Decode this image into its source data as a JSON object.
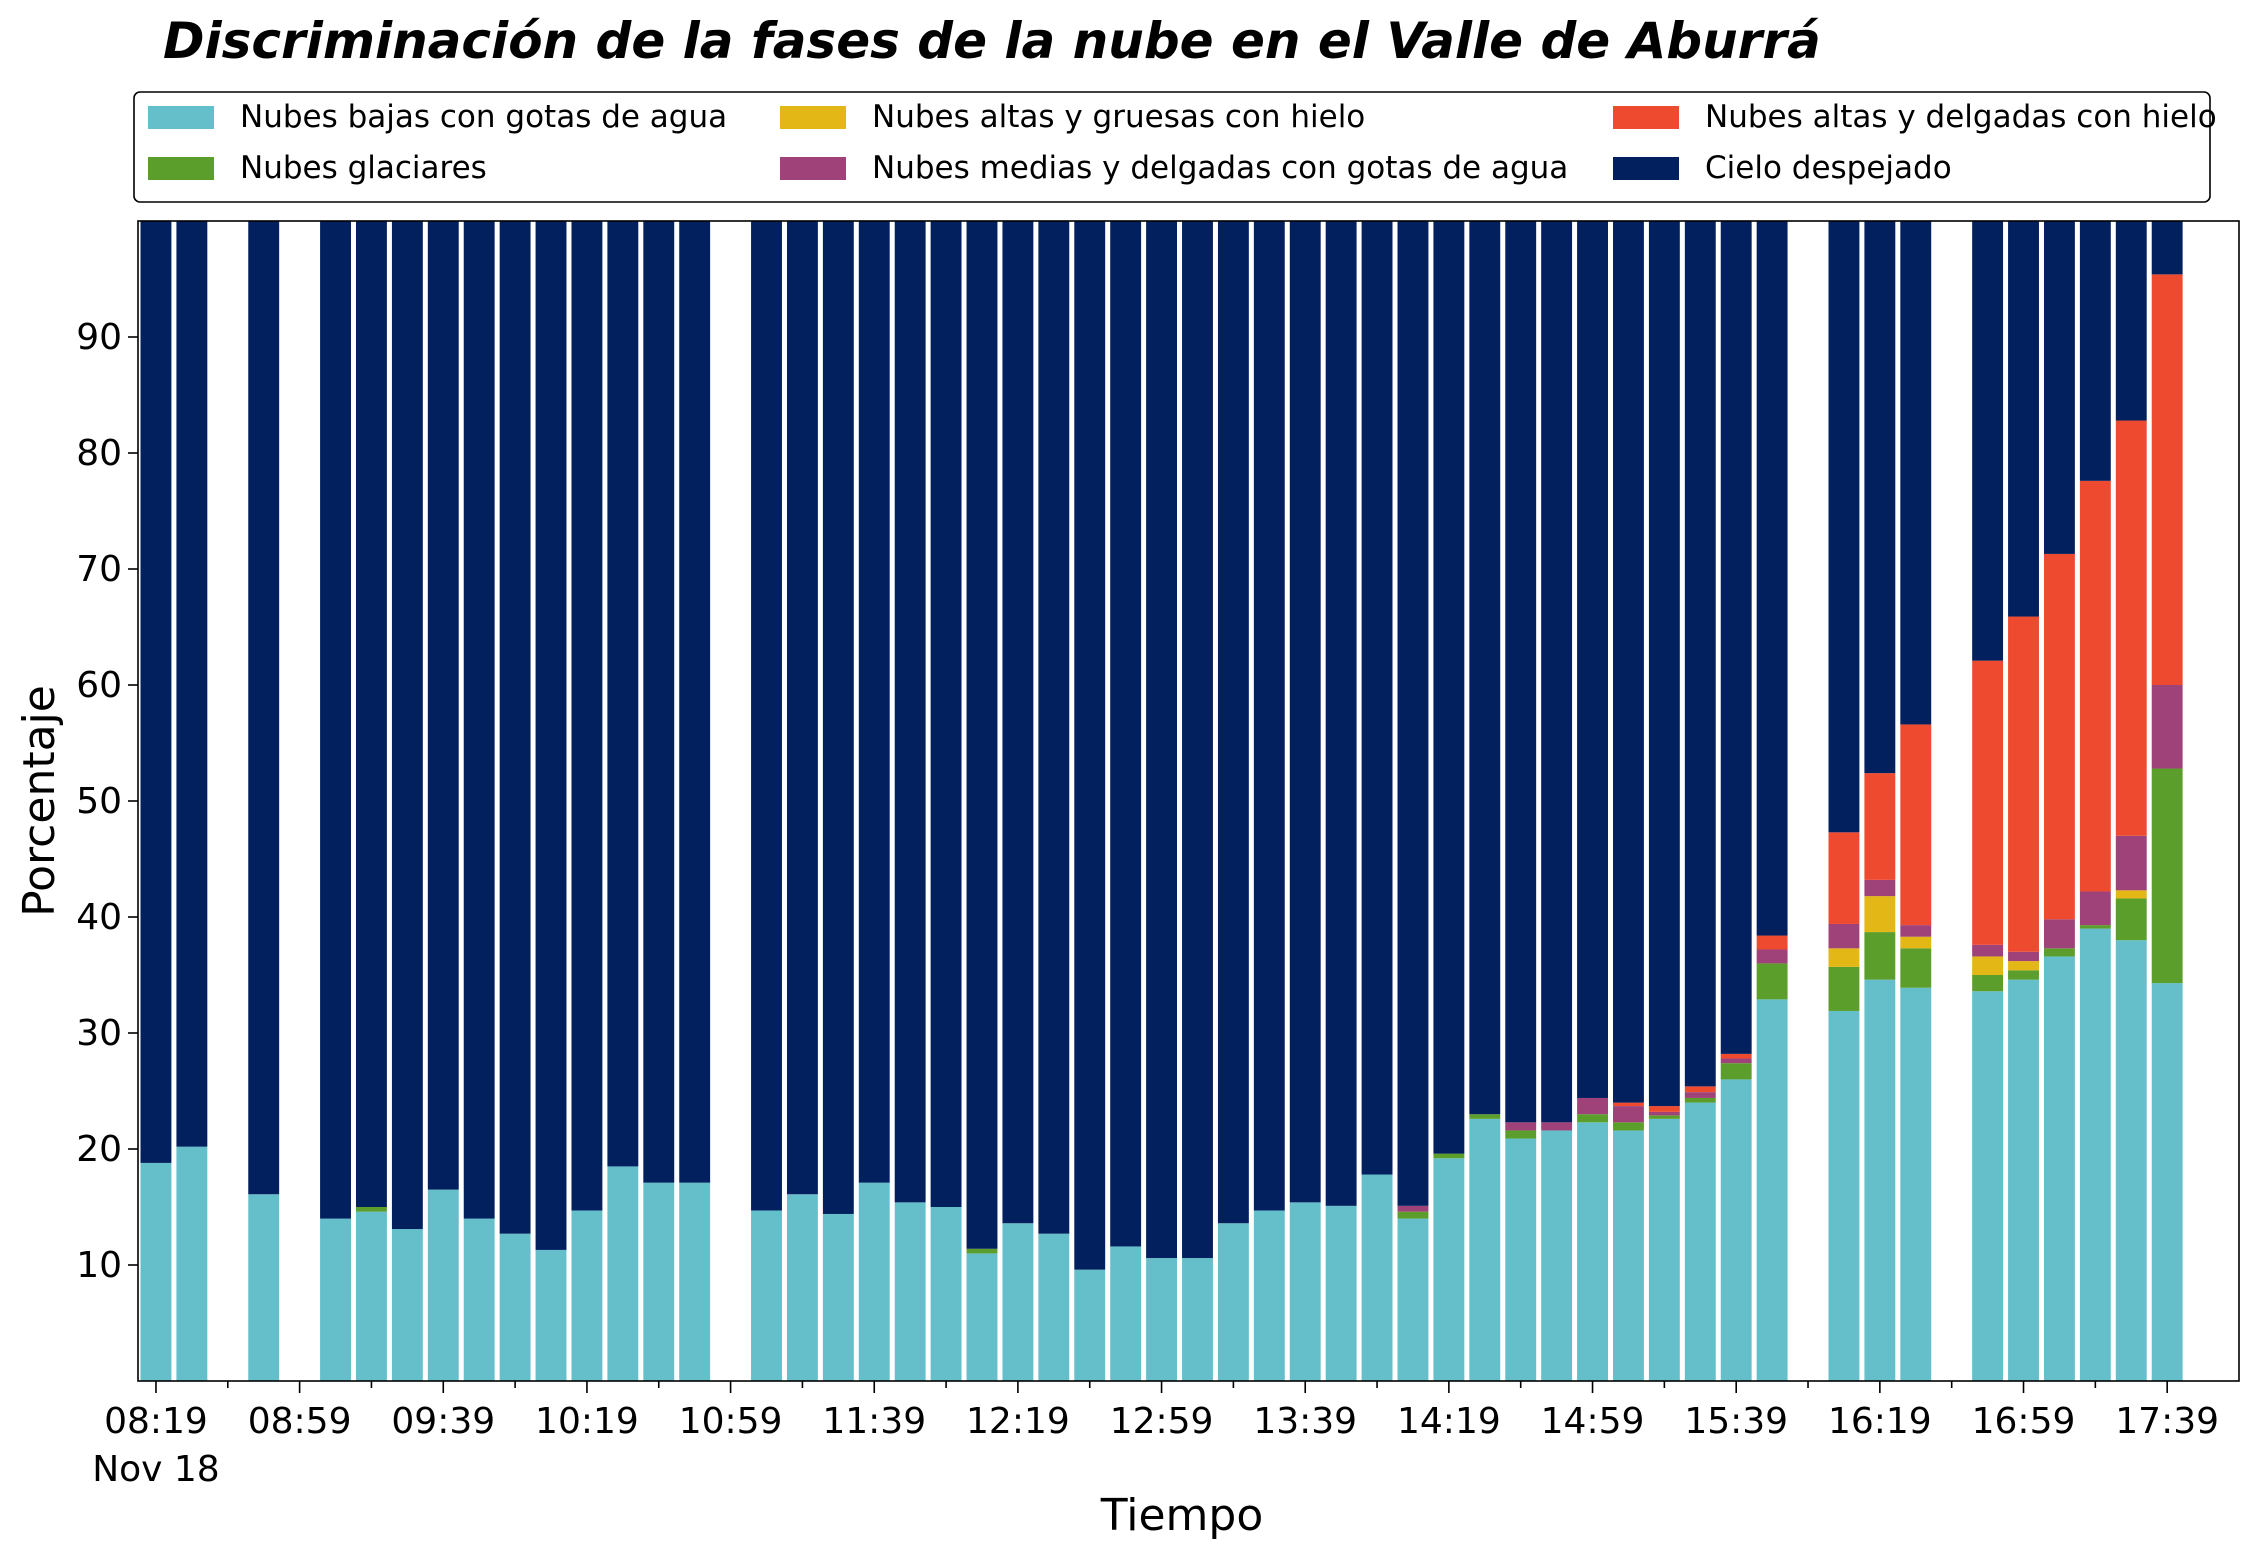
{
  "chart_data": {
    "type": "bar",
    "stacked": true,
    "title": "Discriminación de la fases de la nube en el Valle de Aburrá",
    "xlabel": "Tiempo",
    "ylabel": "Porcentaje",
    "ylim": [
      0,
      100
    ],
    "yticks": [
      10,
      20,
      30,
      40,
      50,
      60,
      70,
      80,
      90
    ],
    "grid": false,
    "legend_position": "top",
    "xtick_labels": [
      {
        "x": 0,
        "label": "08:19",
        "sublabel": "Nov 18"
      },
      {
        "x": 8,
        "label": "08:59"
      },
      {
        "x": 16,
        "label": "09:39"
      },
      {
        "x": 24,
        "label": "10:19"
      },
      {
        "x": 32,
        "label": "10:59"
      },
      {
        "x": 40,
        "label": "11:39"
      },
      {
        "x": 48,
        "label": "12:19"
      },
      {
        "x": 56,
        "label": "12:59"
      },
      {
        "x": 64,
        "label": "13:39"
      },
      {
        "x": 72,
        "label": "14:19"
      },
      {
        "x": 80,
        "label": "14:59"
      },
      {
        "x": 88,
        "label": "15:39"
      },
      {
        "x": 96,
        "label": "16:19"
      },
      {
        "x": 104,
        "label": "16:59"
      },
      {
        "x": 112,
        "label": "17:39"
      }
    ],
    "x_span": [
      -1,
      116
    ],
    "series": [
      {
        "name": "Nubes bajas con gotas de agua",
        "key": "low",
        "color": "#64bfcb"
      },
      {
        "name": "Nubes glaciares",
        "key": "glacier",
        "color": "#5c9e2b"
      },
      {
        "name": "Nubes altas y gruesas con hielo",
        "key": "high_thick",
        "color": "#e2b716"
      },
      {
        "name": "Nubes medias y delgadas con gotas de agua",
        "key": "mid_thin",
        "color": "#a0427a"
      },
      {
        "name": "Nubes altas y delgadas con hielo",
        "key": "high_thin",
        "color": "#ee4a2f"
      },
      {
        "name": "Cielo despejado",
        "key": "clear",
        "color": "#021f5e"
      }
    ],
    "bars": [
      {
        "x": 0,
        "low": 18.8,
        "glacier": 0,
        "high_thick": 0,
        "mid_thin": 0,
        "high_thin": 0,
        "clear": 81.2
      },
      {
        "x": 2,
        "low": 20.2,
        "glacier": 0,
        "high_thick": 0,
        "mid_thin": 0,
        "high_thin": 0,
        "clear": 79.8
      },
      {
        "x": 6,
        "low": 16.1,
        "glacier": 0,
        "high_thick": 0,
        "mid_thin": 0,
        "high_thin": 0,
        "clear": 83.9
      },
      {
        "x": 10,
        "low": 14.0,
        "glacier": 0,
        "high_thick": 0,
        "mid_thin": 0,
        "high_thin": 0,
        "clear": 86.0
      },
      {
        "x": 12,
        "low": 14.6,
        "glacier": 0.4,
        "high_thick": 0,
        "mid_thin": 0,
        "high_thin": 0,
        "clear": 85.0
      },
      {
        "x": 14,
        "low": 13.1,
        "glacier": 0,
        "high_thick": 0,
        "mid_thin": 0,
        "high_thin": 0,
        "clear": 86.9
      },
      {
        "x": 16,
        "low": 16.5,
        "glacier": 0,
        "high_thick": 0,
        "mid_thin": 0,
        "high_thin": 0,
        "clear": 83.5
      },
      {
        "x": 18,
        "low": 14.0,
        "glacier": 0,
        "high_thick": 0,
        "mid_thin": 0,
        "high_thin": 0,
        "clear": 86.0
      },
      {
        "x": 20,
        "low": 12.7,
        "glacier": 0,
        "high_thick": 0,
        "mid_thin": 0,
        "high_thin": 0,
        "clear": 87.3
      },
      {
        "x": 22,
        "low": 11.3,
        "glacier": 0,
        "high_thick": 0,
        "mid_thin": 0,
        "high_thin": 0,
        "clear": 88.7
      },
      {
        "x": 24,
        "low": 14.7,
        "glacier": 0,
        "high_thick": 0,
        "mid_thin": 0,
        "high_thin": 0,
        "clear": 85.3
      },
      {
        "x": 26,
        "low": 18.5,
        "glacier": 0,
        "high_thick": 0,
        "mid_thin": 0,
        "high_thin": 0,
        "clear": 81.5
      },
      {
        "x": 28,
        "low": 17.1,
        "glacier": 0,
        "high_thick": 0,
        "mid_thin": 0,
        "high_thin": 0,
        "clear": 82.9
      },
      {
        "x": 30,
        "low": 17.1,
        "glacier": 0,
        "high_thick": 0,
        "mid_thin": 0,
        "high_thin": 0,
        "clear": 82.9
      },
      {
        "x": 34,
        "low": 14.7,
        "glacier": 0,
        "high_thick": 0,
        "mid_thin": 0,
        "high_thin": 0,
        "clear": 85.3
      },
      {
        "x": 36,
        "low": 16.1,
        "glacier": 0,
        "high_thick": 0,
        "mid_thin": 0,
        "high_thin": 0,
        "clear": 83.9
      },
      {
        "x": 38,
        "low": 14.4,
        "glacier": 0,
        "high_thick": 0,
        "mid_thin": 0,
        "high_thin": 0,
        "clear": 85.6
      },
      {
        "x": 40,
        "low": 17.1,
        "glacier": 0,
        "high_thick": 0,
        "mid_thin": 0,
        "high_thin": 0,
        "clear": 82.9
      },
      {
        "x": 42,
        "low": 15.4,
        "glacier": 0,
        "high_thick": 0,
        "mid_thin": 0,
        "high_thin": 0,
        "clear": 84.6
      },
      {
        "x": 44,
        "low": 15.0,
        "glacier": 0,
        "high_thick": 0,
        "mid_thin": 0,
        "high_thin": 0,
        "clear": 85.0
      },
      {
        "x": 46,
        "low": 11.0,
        "glacier": 0.4,
        "high_thick": 0,
        "mid_thin": 0,
        "high_thin": 0,
        "clear": 88.6
      },
      {
        "x": 48,
        "low": 13.6,
        "glacier": 0,
        "high_thick": 0,
        "mid_thin": 0,
        "high_thin": 0,
        "clear": 86.4
      },
      {
        "x": 50,
        "low": 12.7,
        "glacier": 0,
        "high_thick": 0,
        "mid_thin": 0,
        "high_thin": 0,
        "clear": 87.3
      },
      {
        "x": 52,
        "low": 9.6,
        "glacier": 0,
        "high_thick": 0,
        "mid_thin": 0,
        "high_thin": 0,
        "clear": 90.4
      },
      {
        "x": 54,
        "low": 11.6,
        "glacier": 0,
        "high_thick": 0,
        "mid_thin": 0,
        "high_thin": 0,
        "clear": 88.4
      },
      {
        "x": 56,
        "low": 10.6,
        "glacier": 0,
        "high_thick": 0,
        "mid_thin": 0,
        "high_thin": 0,
        "clear": 89.4
      },
      {
        "x": 58,
        "low": 10.6,
        "glacier": 0,
        "high_thick": 0,
        "mid_thin": 0,
        "high_thin": 0,
        "clear": 89.4
      },
      {
        "x": 60,
        "low": 13.6,
        "glacier": 0,
        "high_thick": 0,
        "mid_thin": 0,
        "high_thin": 0,
        "clear": 86.4
      },
      {
        "x": 62,
        "low": 14.7,
        "glacier": 0,
        "high_thick": 0,
        "mid_thin": 0,
        "high_thin": 0,
        "clear": 85.3
      },
      {
        "x": 64,
        "low": 15.4,
        "glacier": 0,
        "high_thick": 0,
        "mid_thin": 0,
        "high_thin": 0,
        "clear": 84.6
      },
      {
        "x": 66,
        "low": 15.1,
        "glacier": 0,
        "high_thick": 0,
        "mid_thin": 0,
        "high_thin": 0,
        "clear": 84.9
      },
      {
        "x": 68,
        "low": 17.8,
        "glacier": 0,
        "high_thick": 0,
        "mid_thin": 0,
        "high_thin": 0,
        "clear": 82.2
      },
      {
        "x": 70,
        "low": 14.0,
        "glacier": 0.6,
        "high_thick": 0,
        "mid_thin": 0.5,
        "high_thin": 0,
        "clear": 84.9
      },
      {
        "x": 72,
        "low": 19.2,
        "glacier": 0.4,
        "high_thick": 0,
        "mid_thin": 0,
        "high_thin": 0,
        "clear": 80.4
      },
      {
        "x": 74,
        "low": 22.6,
        "glacier": 0.4,
        "high_thick": 0,
        "mid_thin": 0,
        "high_thin": 0,
        "clear": 77.0
      },
      {
        "x": 76,
        "low": 20.9,
        "glacier": 0.7,
        "high_thick": 0,
        "mid_thin": 0.7,
        "high_thin": 0,
        "clear": 77.7
      },
      {
        "x": 78,
        "low": 21.6,
        "glacier": 0,
        "high_thick": 0,
        "mid_thin": 0.7,
        "high_thin": 0,
        "clear": 77.7
      },
      {
        "x": 80,
        "low": 22.3,
        "glacier": 0.7,
        "high_thick": 0,
        "mid_thin": 1.4,
        "high_thin": 0,
        "clear": 75.6
      },
      {
        "x": 82,
        "low": 21.6,
        "glacier": 0.7,
        "high_thick": 0,
        "mid_thin": 1.4,
        "high_thin": 0.3,
        "clear": 76.0
      },
      {
        "x": 84,
        "low": 22.6,
        "glacier": 0.3,
        "high_thick": 0,
        "mid_thin": 0.3,
        "high_thin": 0.5,
        "clear": 76.3
      },
      {
        "x": 86,
        "low": 24.0,
        "glacier": 0.4,
        "high_thick": 0,
        "mid_thin": 0.5,
        "high_thin": 0.5,
        "clear": 74.6
      },
      {
        "x": 88,
        "low": 26.0,
        "glacier": 1.4,
        "high_thick": 0,
        "mid_thin": 0.4,
        "high_thin": 0.4,
        "clear": 71.8
      },
      {
        "x": 90,
        "low": 32.9,
        "glacier": 3.1,
        "high_thick": 0,
        "mid_thin": 1.2,
        "high_thin": 1.2,
        "clear": 61.6
      },
      {
        "x": 94,
        "low": 31.9,
        "glacier": 3.8,
        "high_thick": 1.6,
        "mid_thin": 2.1,
        "high_thin": 7.9,
        "clear": 52.7
      },
      {
        "x": 96,
        "low": 34.6,
        "glacier": 4.1,
        "high_thick": 3.1,
        "mid_thin": 1.4,
        "high_thin": 9.2,
        "clear": 47.6
      },
      {
        "x": 98,
        "low": 33.9,
        "glacier": 3.4,
        "high_thick": 1.0,
        "mid_thin": 1.0,
        "high_thin": 17.3,
        "clear": 43.4
      },
      {
        "x": 102,
        "low": 33.6,
        "glacier": 1.4,
        "high_thick": 1.6,
        "mid_thin": 1.0,
        "high_thin": 24.5,
        "clear": 37.9
      },
      {
        "x": 104,
        "low": 34.6,
        "glacier": 0.8,
        "high_thick": 0.8,
        "mid_thin": 0.8,
        "high_thin": 28.9,
        "clear": 34.1
      },
      {
        "x": 106,
        "low": 36.6,
        "glacier": 0.7,
        "high_thick": 0,
        "mid_thin": 2.5,
        "high_thin": 31.5,
        "clear": 28.7
      },
      {
        "x": 108,
        "low": 39.0,
        "glacier": 0.3,
        "high_thick": 0,
        "mid_thin": 2.9,
        "high_thin": 35.4,
        "clear": 22.4
      },
      {
        "x": 110,
        "low": 38.0,
        "glacier": 3.6,
        "high_thick": 0.7,
        "mid_thin": 4.7,
        "high_thin": 35.8,
        "clear": 17.2
      },
      {
        "x": 112,
        "low": 34.3,
        "glacier": 18.5,
        "high_thick": 0,
        "mid_thin": 7.2,
        "high_thin": 35.4,
        "clear": 4.6
      }
    ]
  }
}
